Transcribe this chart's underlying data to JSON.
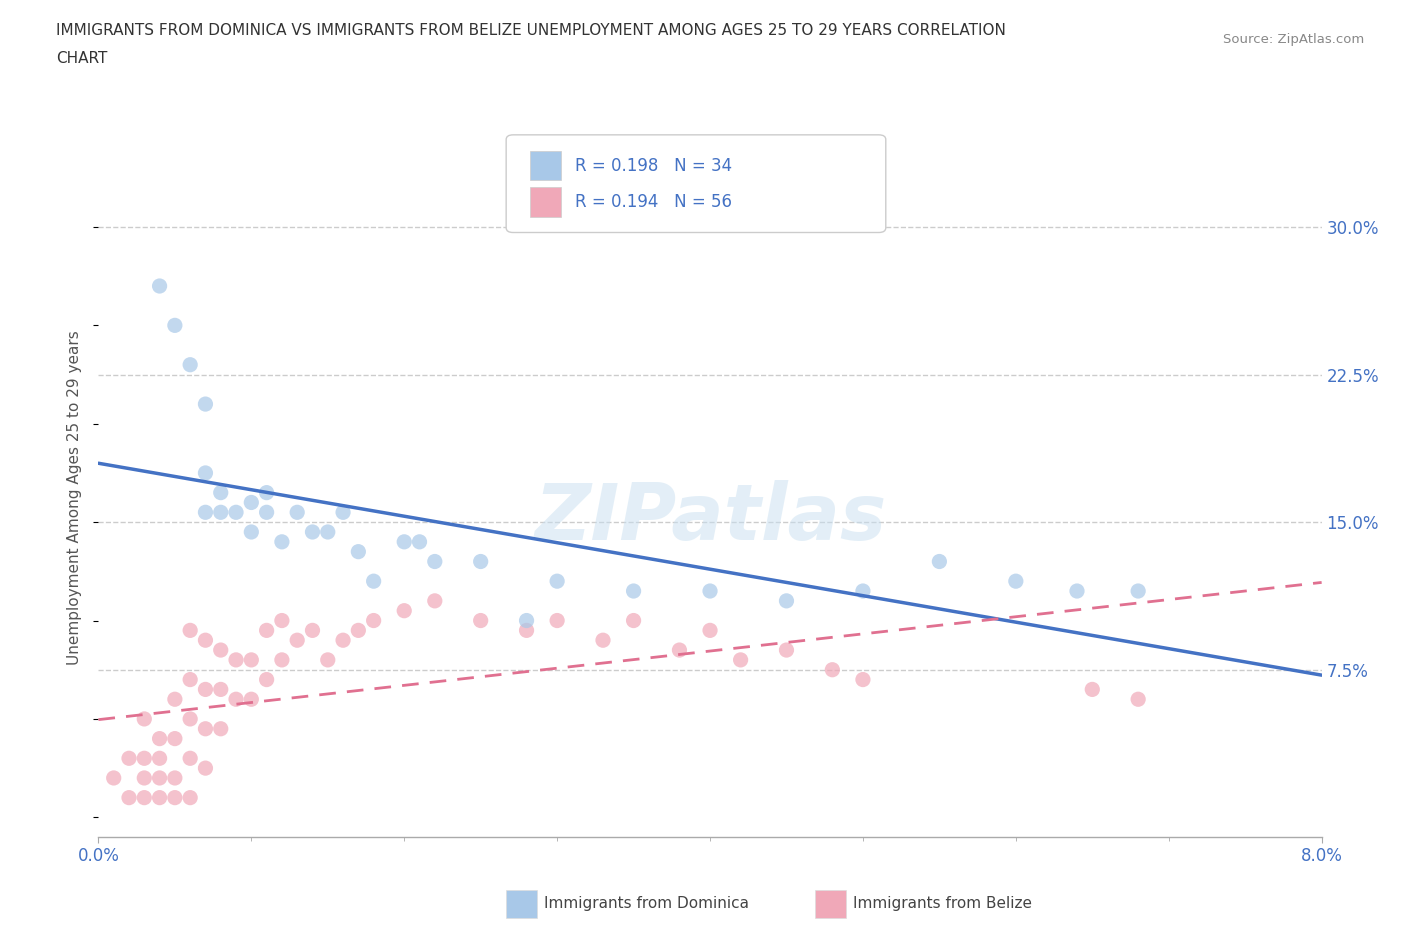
{
  "title_line1": "IMMIGRANTS FROM DOMINICA VS IMMIGRANTS FROM BELIZE UNEMPLOYMENT AMONG AGES 25 TO 29 YEARS CORRELATION",
  "title_line2": "CHART",
  "source_text": "Source: ZipAtlas.com",
  "ylabel": "Unemployment Among Ages 25 to 29 years",
  "xlim": [
    0.0,
    0.08
  ],
  "ylim": [
    -0.01,
    0.335
  ],
  "ytick_vals": [
    0.075,
    0.15,
    0.225,
    0.3
  ],
  "ytick_labels": [
    "7.5%",
    "15.0%",
    "22.5%",
    "30.0%"
  ],
  "xtick_vals": [
    0.0,
    0.08
  ],
  "xtick_labels": [
    "0.0%",
    "8.0%"
  ],
  "dominica_color": "#a8c8e8",
  "belize_color": "#f0a8b8",
  "dominica_line_color": "#4472c4",
  "belize_line_color": "#e07090",
  "tick_label_color": "#4472c4",
  "legend_r_dominica": "R = 0.198",
  "legend_n_dominica": "N = 34",
  "legend_r_belize": "R = 0.194",
  "legend_n_belize": "N = 56",
  "watermark": "ZIPatlas",
  "dominica_x": [
    0.004,
    0.005,
    0.006,
    0.007,
    0.007,
    0.007,
    0.008,
    0.008,
    0.009,
    0.01,
    0.01,
    0.011,
    0.011,
    0.012,
    0.013,
    0.014,
    0.015,
    0.016,
    0.017,
    0.018,
    0.02,
    0.021,
    0.022,
    0.025,
    0.028,
    0.03,
    0.035,
    0.04,
    0.045,
    0.05,
    0.055,
    0.06,
    0.064,
    0.068
  ],
  "dominica_y": [
    0.27,
    0.25,
    0.23,
    0.175,
    0.155,
    0.21,
    0.155,
    0.165,
    0.155,
    0.145,
    0.16,
    0.155,
    0.165,
    0.14,
    0.155,
    0.145,
    0.145,
    0.155,
    0.135,
    0.12,
    0.14,
    0.14,
    0.13,
    0.13,
    0.1,
    0.12,
    0.115,
    0.115,
    0.11,
    0.115,
    0.13,
    0.12,
    0.115,
    0.115
  ],
  "belize_x": [
    0.001,
    0.002,
    0.002,
    0.003,
    0.003,
    0.003,
    0.003,
    0.004,
    0.004,
    0.004,
    0.004,
    0.005,
    0.005,
    0.005,
    0.005,
    0.006,
    0.006,
    0.006,
    0.006,
    0.006,
    0.007,
    0.007,
    0.007,
    0.007,
    0.008,
    0.008,
    0.008,
    0.009,
    0.009,
    0.01,
    0.01,
    0.011,
    0.011,
    0.012,
    0.012,
    0.013,
    0.014,
    0.015,
    0.016,
    0.017,
    0.018,
    0.02,
    0.022,
    0.025,
    0.028,
    0.03,
    0.033,
    0.035,
    0.038,
    0.04,
    0.042,
    0.045,
    0.048,
    0.05,
    0.065,
    0.068
  ],
  "belize_y": [
    0.02,
    0.01,
    0.03,
    0.01,
    0.02,
    0.03,
    0.05,
    0.01,
    0.02,
    0.03,
    0.04,
    0.01,
    0.02,
    0.04,
    0.06,
    0.01,
    0.03,
    0.05,
    0.07,
    0.095,
    0.025,
    0.045,
    0.065,
    0.09,
    0.045,
    0.065,
    0.085,
    0.06,
    0.08,
    0.06,
    0.08,
    0.07,
    0.095,
    0.08,
    0.1,
    0.09,
    0.095,
    0.08,
    0.09,
    0.095,
    0.1,
    0.105,
    0.11,
    0.1,
    0.095,
    0.1,
    0.09,
    0.1,
    0.085,
    0.095,
    0.08,
    0.085,
    0.075,
    0.07,
    0.065,
    0.06
  ],
  "grid_color": "#cccccc",
  "background_color": "#ffffff"
}
